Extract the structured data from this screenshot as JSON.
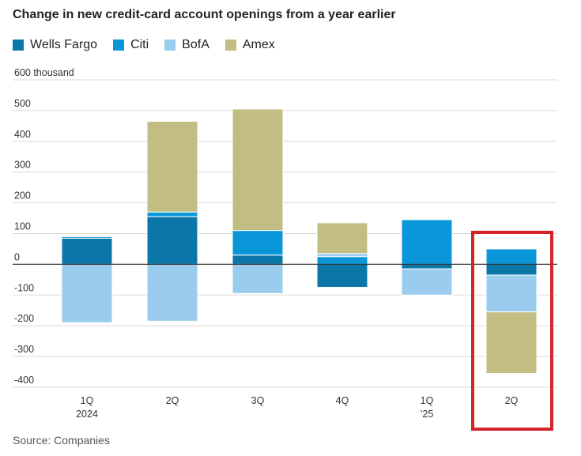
{
  "chart_data": {
    "type": "bar",
    "stacked": true,
    "title": "Change in new credit-card account openings from a year earlier",
    "source": "Source: Companies",
    "ylim": [
      -400,
      600
    ],
    "yticks": [
      {
        "value": 600,
        "label": "600 thousand"
      },
      {
        "value": 500,
        "label": "500"
      },
      {
        "value": 400,
        "label": "400"
      },
      {
        "value": 300,
        "label": "300"
      },
      {
        "value": 200,
        "label": "200"
      },
      {
        "value": 100,
        "label": "100"
      },
      {
        "value": 0,
        "label": "0"
      },
      {
        "value": -100,
        "label": "-100"
      },
      {
        "value": -200,
        "label": "-200"
      },
      {
        "value": -300,
        "label": "-300"
      },
      {
        "value": -400,
        "label": "-400"
      }
    ],
    "categories": [
      {
        "label": "1Q",
        "sublabel": "2024"
      },
      {
        "label": "2Q",
        "sublabel": ""
      },
      {
        "label": "3Q",
        "sublabel": ""
      },
      {
        "label": "4Q",
        "sublabel": ""
      },
      {
        "label": "1Q",
        "sublabel": "’25"
      },
      {
        "label": "2Q",
        "sublabel": ""
      }
    ],
    "series": [
      {
        "name": "Wells Fargo",
        "color": "#0b77a8",
        "values": [
          85,
          155,
          30,
          -75,
          -15,
          -35
        ]
      },
      {
        "name": "Citi",
        "color": "#0a97d9",
        "values": [
          5,
          15,
          80,
          25,
          145,
          50
        ]
      },
      {
        "name": "BofA",
        "color": "#99ccee",
        "values": [
          -190,
          -185,
          -95,
          10,
          -85,
          -120
        ]
      },
      {
        "name": "Amex",
        "color": "#c2bd83",
        "values": [
          0,
          295,
          395,
          100,
          0,
          -200
        ]
      }
    ],
    "highlight": {
      "category_index": 5,
      "color": "#d3242b"
    },
    "grid": true,
    "legend_position": "top-left"
  }
}
